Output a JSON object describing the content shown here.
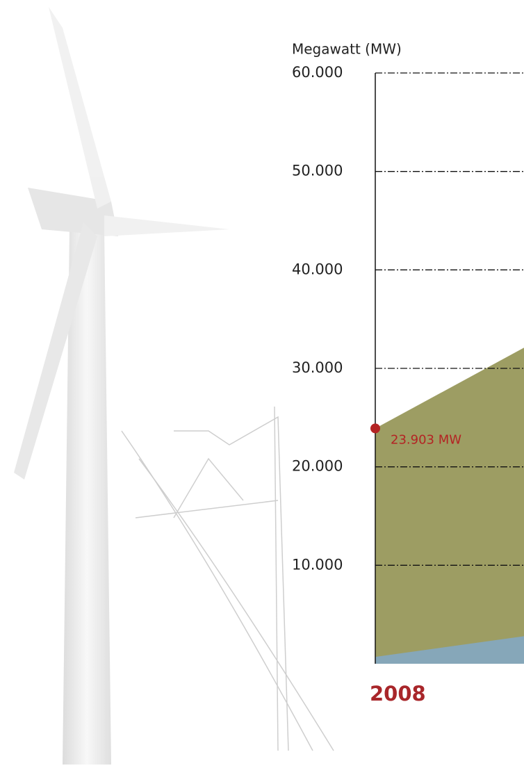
{
  "chart_data": {
    "type": "area",
    "y_label": "Megawatt (MW)",
    "categories": [
      "2008",
      null
    ],
    "series": [
      {
        "color": "#9d9d63",
        "values": [
          23903,
          32100
        ],
        "value_labels": [
          "23.903 MW",
          null
        ],
        "point_color": "#b42323"
      },
      {
        "color": "#86a7b9",
        "values": [
          700,
          2800
        ]
      }
    ],
    "ylim": [
      0,
      60000
    ],
    "yticks": [
      {
        "value": 10000,
        "label": "10.000"
      },
      {
        "value": 20000,
        "label": "20.000"
      },
      {
        "value": 30000,
        "label": "30.000"
      },
      {
        "value": 40000,
        "label": "40.000"
      },
      {
        "value": 50000,
        "label": "50.000"
      },
      {
        "value": 60000,
        "label": "60.000"
      }
    ],
    "grid": true,
    "category_color": "#a8262a"
  }
}
